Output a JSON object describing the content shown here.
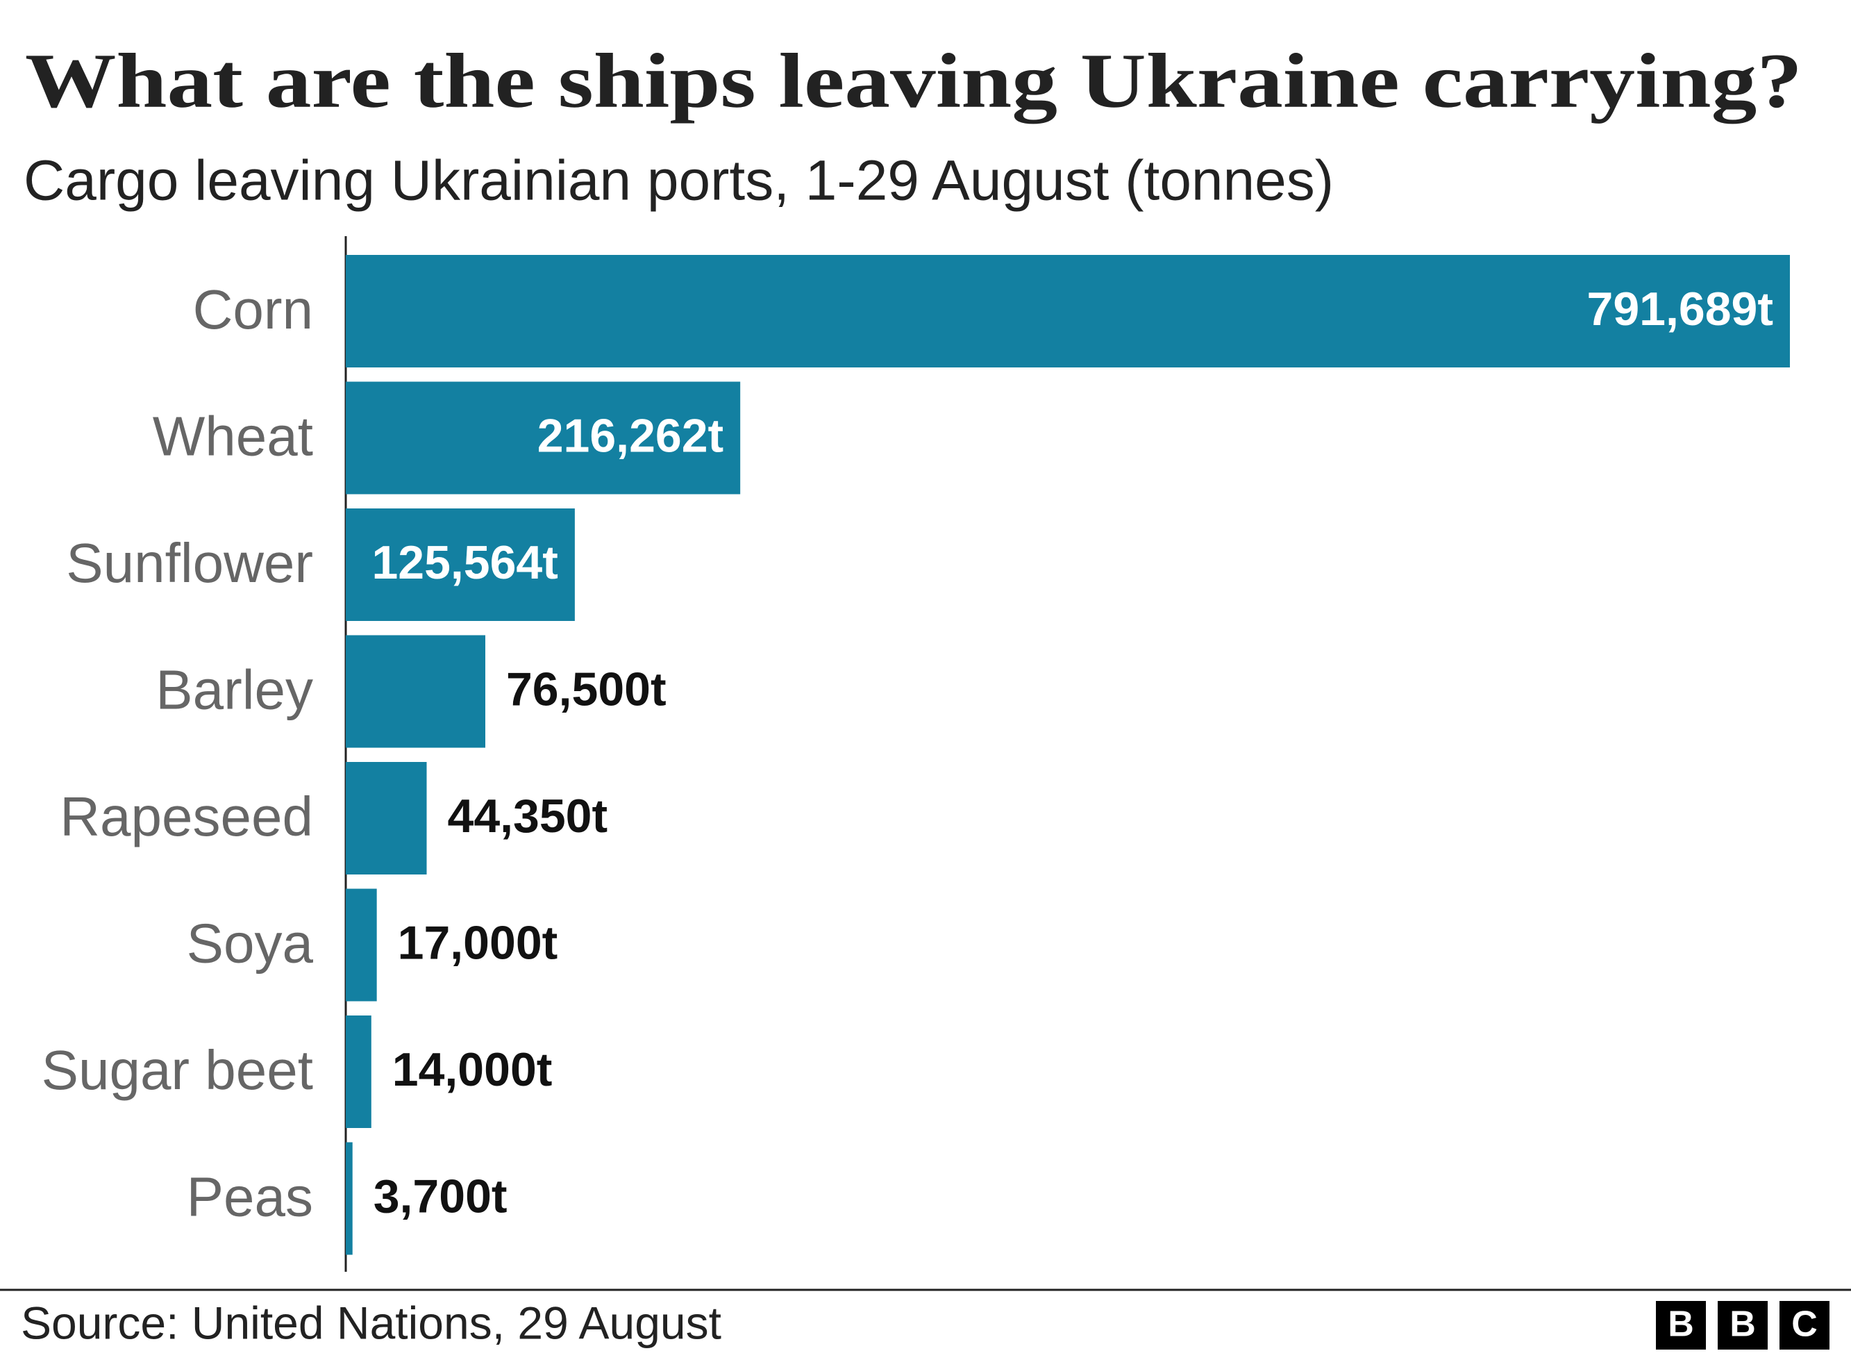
{
  "chart_data": {
    "type": "bar",
    "orientation": "horizontal",
    "title": "What are the ships leaving Ukraine carrying?",
    "subtitle": "Cargo leaving Ukrainian ports, 1-29 August (tonnes)",
    "categories": [
      "Corn",
      "Wheat",
      "Sunflower",
      "Barley",
      "Rapeseed",
      "Soya",
      "Sugar beet",
      "Peas"
    ],
    "values": [
      791689,
      216262,
      125564,
      76500,
      44350,
      17000,
      14000,
      3700
    ],
    "value_labels": [
      "791,689t",
      "216,262t",
      "125,564t",
      "76,500t",
      "44,350t",
      "17,000t",
      "14,000t",
      "3,700t"
    ],
    "color": "#1380a1",
    "source": "Source: United Nations, 29 August",
    "logo": [
      "B",
      "B",
      "C"
    ]
  }
}
